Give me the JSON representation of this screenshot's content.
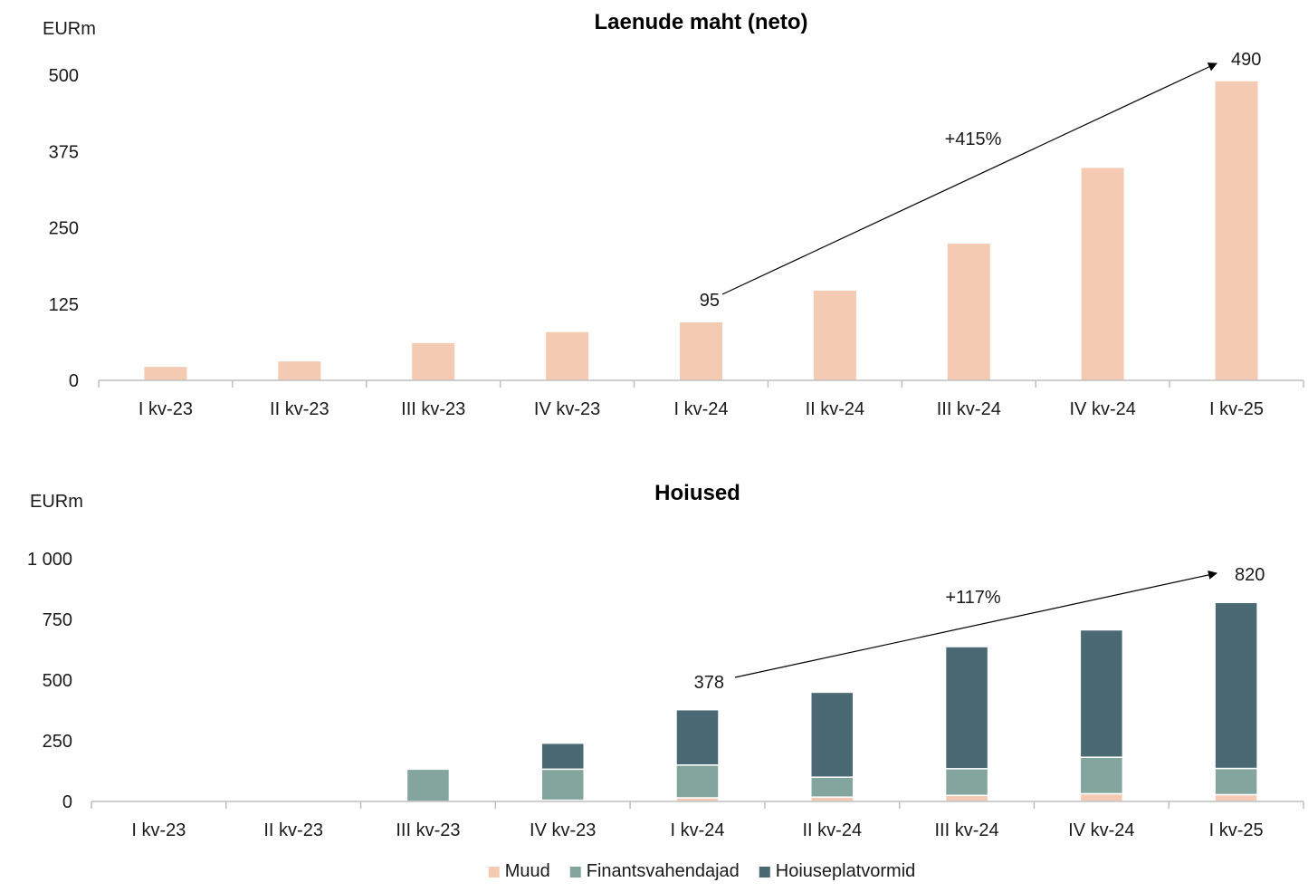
{
  "chart_data": [
    {
      "type": "bar",
      "title": "Laenude maht (neto)",
      "unit_label": "EURm",
      "categories": [
        "I kv-23",
        "II kv-23",
        "III kv-23",
        "IV kv-23",
        "I kv-24",
        "II kv-24",
        "III kv-24",
        "IV kv-24",
        "I kv-25"
      ],
      "yticks": [
        "0",
        "125",
        "250",
        "375",
        "500"
      ],
      "ytick_values": [
        0,
        125,
        250,
        375,
        500
      ],
      "ylim": [
        0,
        500
      ],
      "series": [
        {
          "values": [
            22,
            31,
            61,
            79,
            95,
            147,
            224,
            348,
            490
          ],
          "color": "#f4cbb2"
        }
      ],
      "annotation": {
        "from_label": "95",
        "to_label": "490",
        "growth_label": "+415%",
        "from_category": "I kv-24",
        "to_category": "I kv-25"
      },
      "grid": false,
      "legend": "none"
    },
    {
      "type": "bar",
      "stacked": true,
      "title": "Hoiused",
      "unit_label": "EURm",
      "categories": [
        "I kv-23",
        "II kv-23",
        "III kv-23",
        "IV kv-23",
        "I kv-24",
        "II kv-24",
        "III kv-24",
        "IV kv-24",
        "I kv-25"
      ],
      "yticks": [
        "0",
        "250",
        "500",
        "750",
        "1 000"
      ],
      "ytick_values": [
        0,
        250,
        500,
        750,
        1000
      ],
      "ylim": [
        0,
        1000
      ],
      "series": [
        {
          "name": "Muud",
          "values": [
            0,
            0,
            0,
            5,
            15,
            18,
            25,
            32,
            28
          ],
          "color": "#f4cbb2"
        },
        {
          "name": "Finantsvahendajad",
          "values": [
            0,
            0,
            133,
            128,
            135,
            82,
            110,
            150,
            108
          ],
          "color": "#83a59d"
        },
        {
          "name": "Hoiuseplatvormid",
          "values": [
            0,
            0,
            0,
            107,
            228,
            350,
            503,
            525,
            684
          ],
          "color": "#4b6972"
        }
      ],
      "annotation": {
        "from_label": "378",
        "to_label": "820",
        "growth_label": "+117%",
        "from_category": "I kv-24",
        "to_category": "I kv-25"
      },
      "grid": false,
      "legend": "bottom-center"
    }
  ]
}
